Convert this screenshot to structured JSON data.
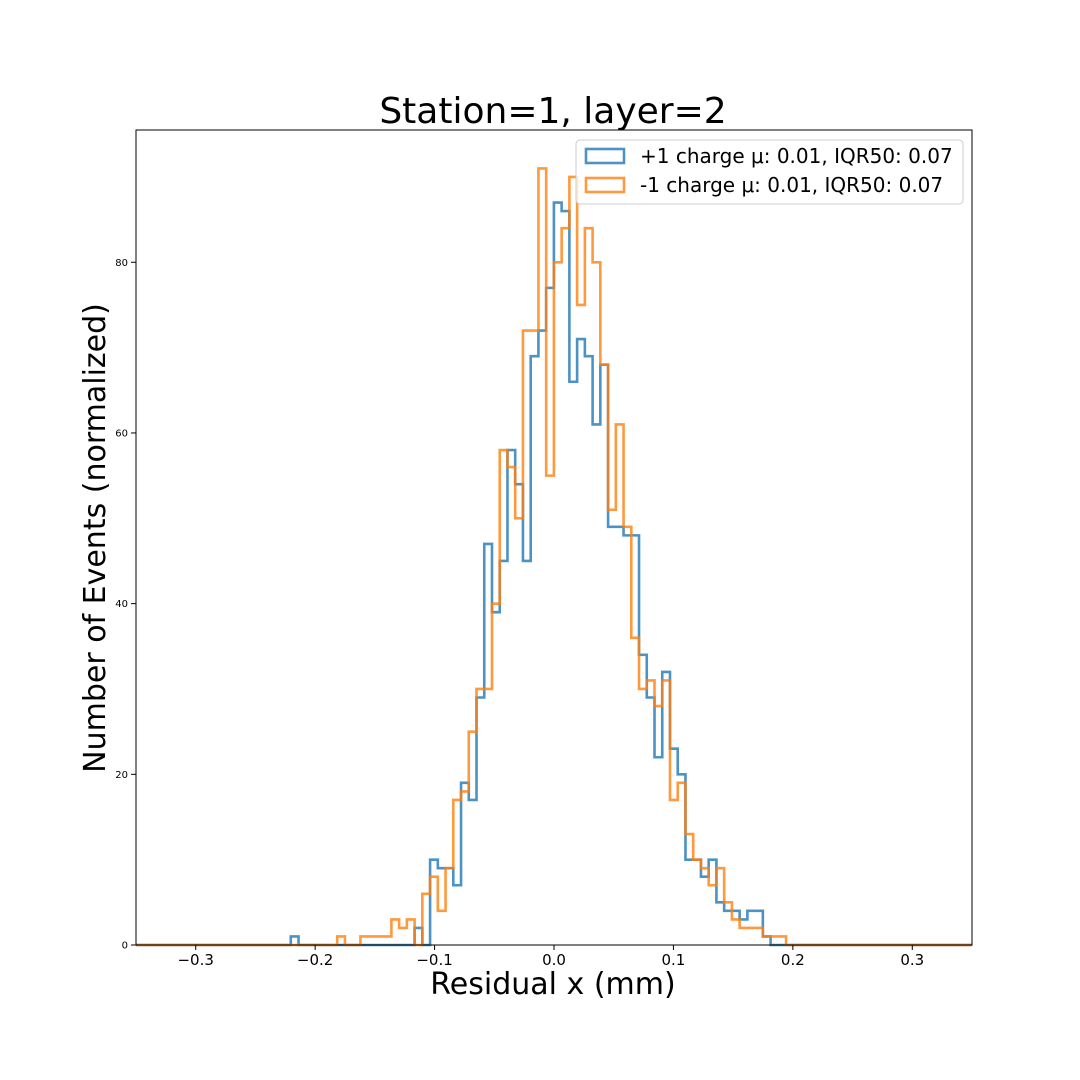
{
  "chart_data": {
    "type": "histogram-step",
    "title": "Station=1, layer=2",
    "xlabel": "Residual x (mm)",
    "ylabel": "Number of Events (normalized)",
    "xlim": [
      -0.35,
      0.35
    ],
    "ylim": [
      0,
      95.5
    ],
    "grid": false,
    "legend_position": "top-right",
    "xticks": [
      -0.3,
      -0.2,
      -0.1,
      0.0,
      0.1,
      0.2,
      0.3
    ],
    "xtick_labels": [
      "−0.3",
      "−0.2",
      "−0.1",
      "0.0",
      "0.1",
      "0.2",
      "0.3"
    ],
    "yticks": [
      0,
      20,
      40,
      60,
      80
    ],
    "ytick_labels": [
      "0",
      "20",
      "40",
      "60",
      "80"
    ],
    "bins": {
      "start": -0.35,
      "width": 0.00648,
      "count": 108
    },
    "series": [
      {
        "name": "+1 charge μ: 0.01, IQR50: 0.07",
        "color": "#1f77b4",
        "values": [
          0,
          0,
          0,
          0,
          0,
          0,
          0,
          0,
          0,
          0,
          0,
          0,
          0,
          0,
          0,
          0,
          0,
          0,
          0,
          0,
          1,
          0,
          0,
          0,
          0,
          0,
          0,
          0,
          0,
          0,
          0,
          0,
          0,
          0,
          0,
          0,
          2,
          0,
          10,
          9,
          9,
          7,
          19,
          17,
          29,
          47,
          39,
          45,
          58,
          54,
          45,
          69,
          72,
          77,
          87,
          86,
          66,
          71,
          69,
          61,
          68,
          49,
          49,
          48,
          48,
          34,
          29,
          22,
          32,
          23,
          20,
          10,
          10,
          8,
          10,
          5,
          4,
          4,
          3,
          4,
          4,
          1,
          0,
          0,
          0,
          0,
          0,
          0,
          0,
          0,
          0,
          0,
          0,
          0,
          0,
          0,
          0,
          0,
          0,
          0,
          0,
          0,
          0,
          0,
          0,
          0,
          0,
          0
        ]
      },
      {
        "name": "-1 charge μ: 0.01, IQR50: 0.07",
        "color": "#ff7f0e",
        "values": [
          0,
          0,
          0,
          0,
          0,
          0,
          0,
          0,
          0,
          0,
          0,
          0,
          0,
          0,
          0,
          0,
          0,
          0,
          0,
          0,
          0,
          0,
          0,
          0,
          0,
          0,
          1,
          0,
          0,
          1,
          1,
          1,
          1,
          3,
          2,
          3,
          0,
          6,
          8,
          4,
          9,
          17,
          18,
          25,
          30,
          30,
          40,
          58,
          56,
          50,
          72,
          72,
          91,
          55,
          80,
          84,
          90,
          75,
          84,
          80,
          68,
          51,
          61,
          49,
          36,
          30,
          31,
          28,
          31,
          17,
          19,
          13,
          10,
          9,
          7,
          9,
          5,
          3,
          2,
          2,
          2,
          1,
          1,
          1,
          0,
          0,
          0,
          0,
          0,
          0,
          0,
          0,
          0,
          0,
          0,
          0,
          0,
          0,
          0,
          0,
          0,
          0,
          0,
          0,
          0,
          0,
          0,
          0
        ]
      }
    ]
  }
}
